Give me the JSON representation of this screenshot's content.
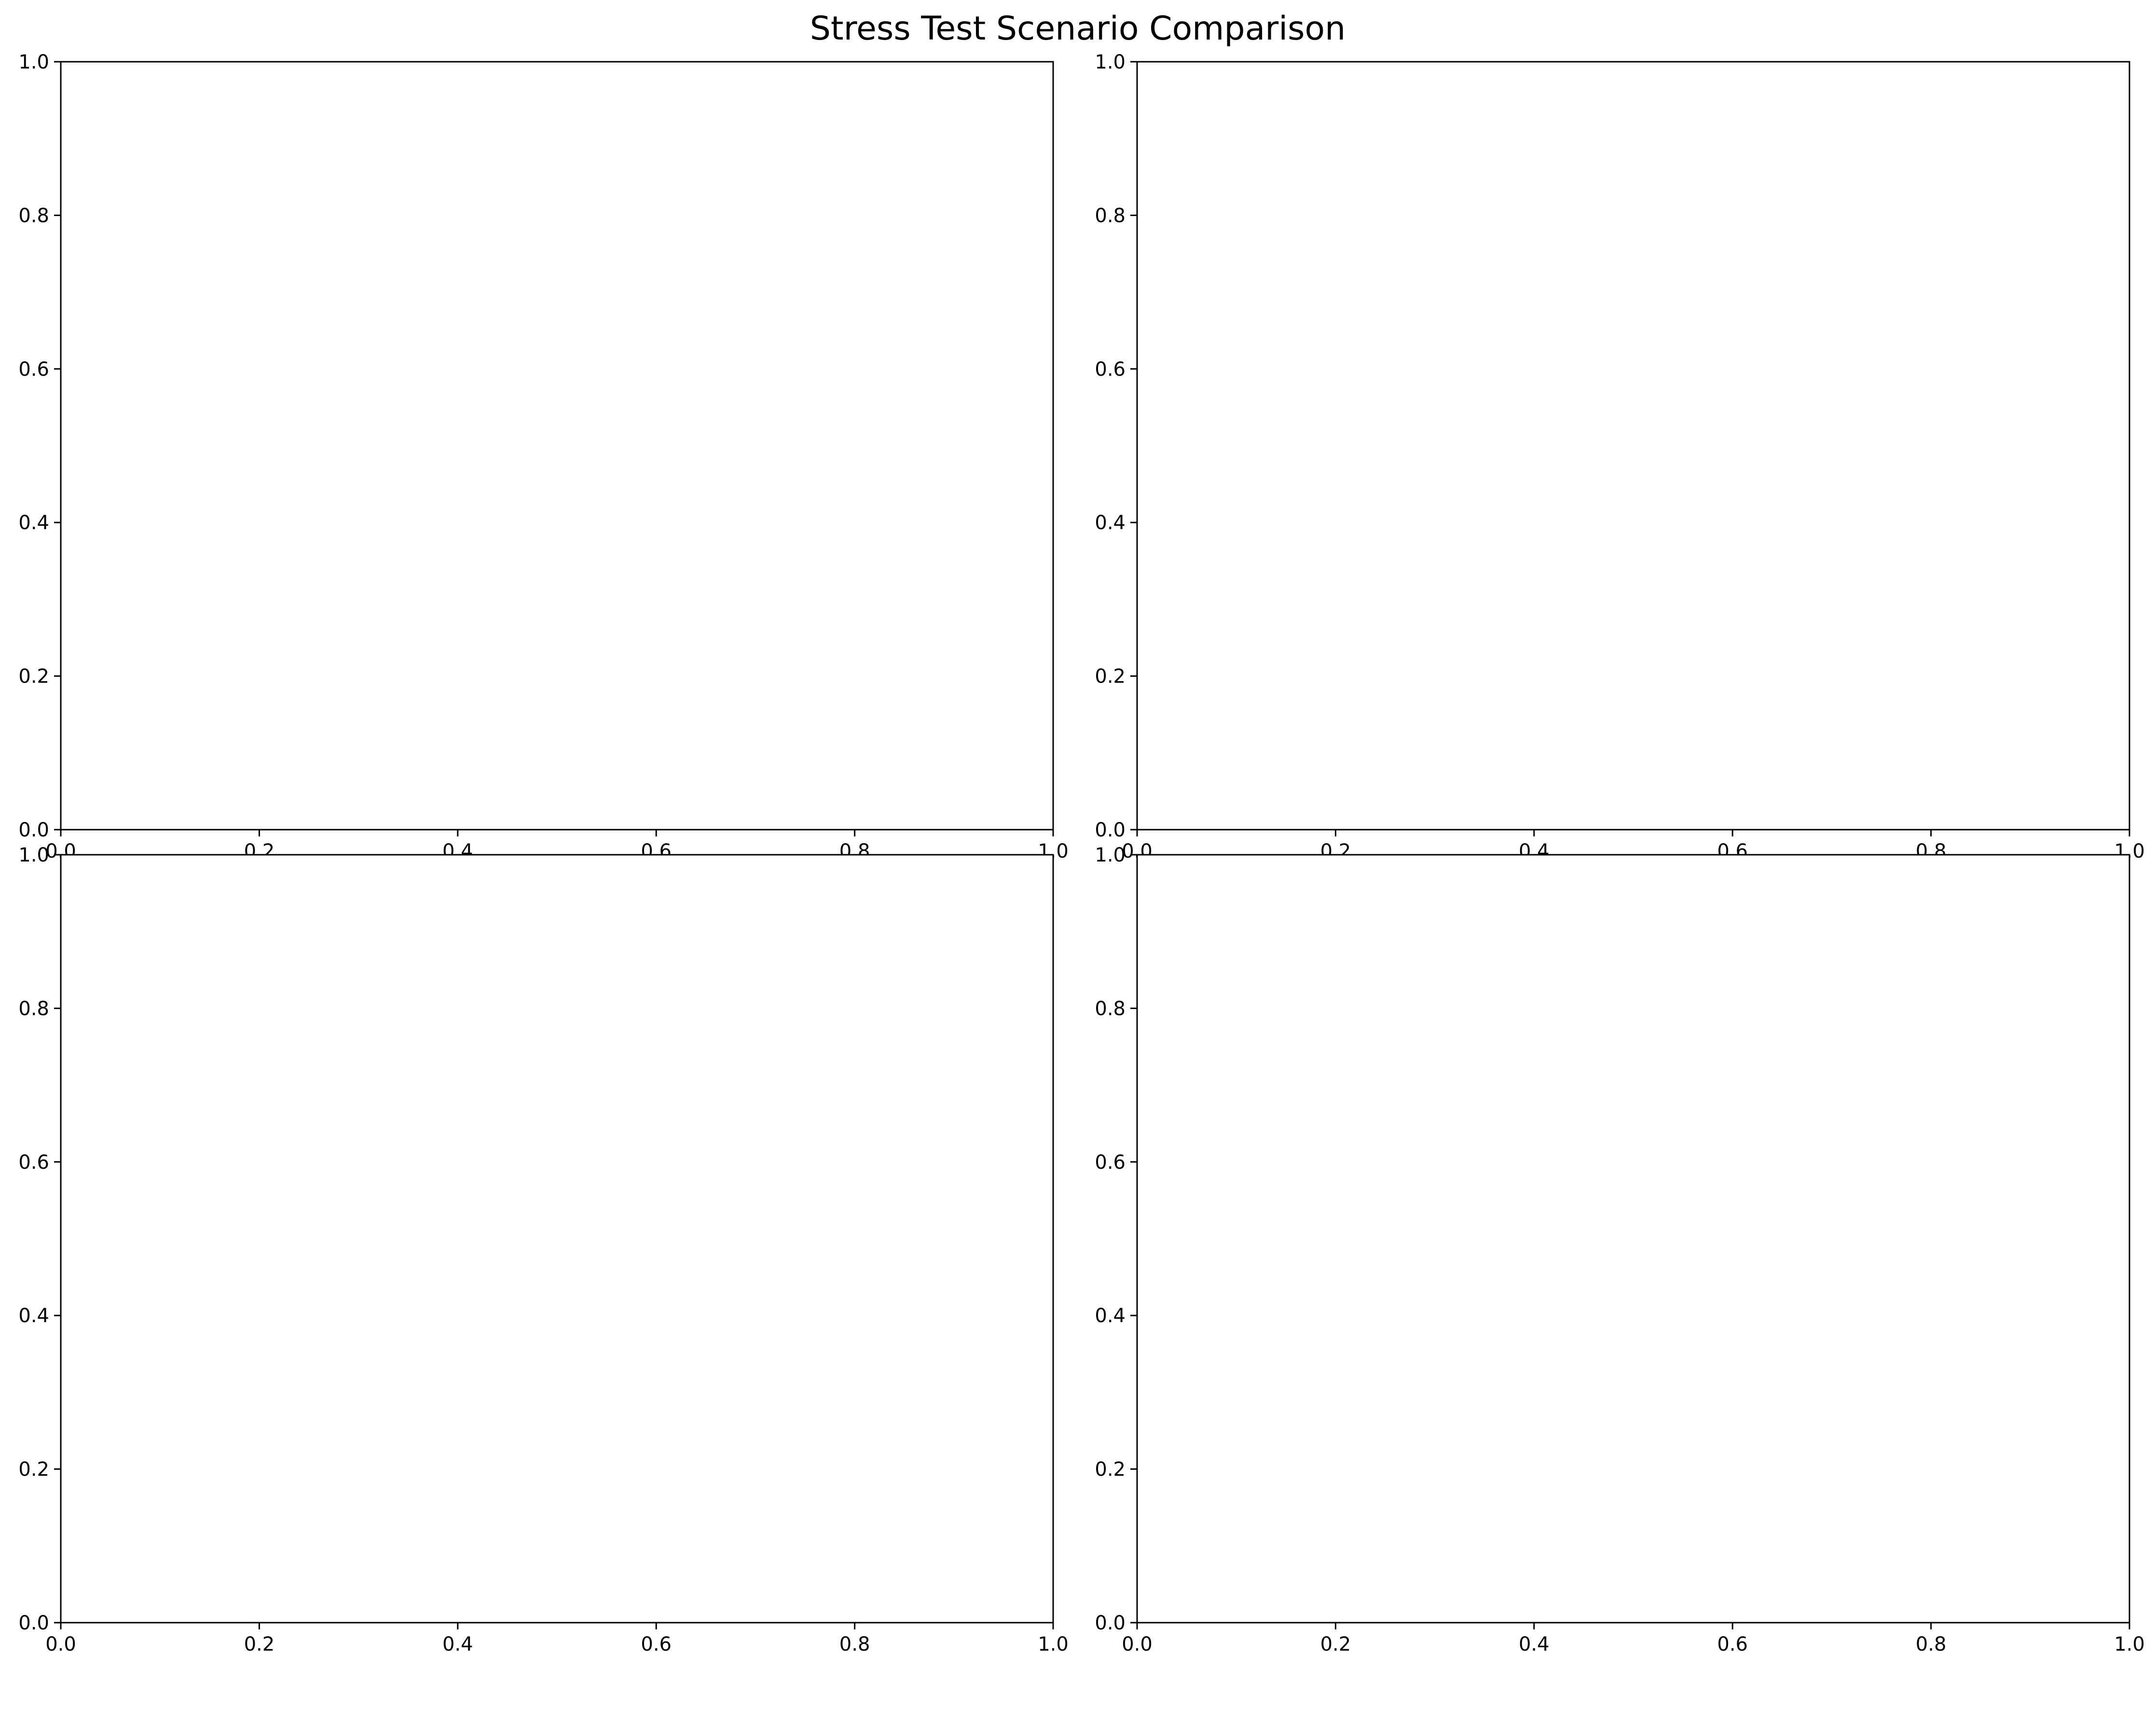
{
  "figure": {
    "title": "Stress Test Scenario Comparison",
    "background": "#ffffff",
    "axis_color": "#000000"
  },
  "chart_data": [
    {
      "type": "line",
      "title": "",
      "xlabel": "",
      "ylabel": "",
      "xlim": [
        0.0,
        1.0
      ],
      "ylim": [
        0.0,
        1.0
      ],
      "xticks": [
        "0.0",
        "0.2",
        "0.4",
        "0.6",
        "0.8",
        "1.0"
      ],
      "yticks": [
        "0.0",
        "0.2",
        "0.4",
        "0.6",
        "0.8",
        "1.0"
      ],
      "grid": false,
      "series": []
    },
    {
      "type": "line",
      "title": "",
      "xlabel": "",
      "ylabel": "",
      "xlim": [
        0.0,
        1.0
      ],
      "ylim": [
        0.0,
        1.0
      ],
      "xticks": [
        "0.0",
        "0.2",
        "0.4",
        "0.6",
        "0.8",
        "1.0"
      ],
      "yticks": [
        "0.0",
        "0.2",
        "0.4",
        "0.6",
        "0.8",
        "1.0"
      ],
      "grid": false,
      "series": []
    },
    {
      "type": "line",
      "title": "",
      "xlabel": "",
      "ylabel": "",
      "xlim": [
        0.0,
        1.0
      ],
      "ylim": [
        0.0,
        1.0
      ],
      "xticks": [
        "0.0",
        "0.2",
        "0.4",
        "0.6",
        "0.8",
        "1.0"
      ],
      "yticks": [
        "0.0",
        "0.2",
        "0.4",
        "0.6",
        "0.8",
        "1.0"
      ],
      "grid": false,
      "series": []
    },
    {
      "type": "line",
      "title": "",
      "xlabel": "",
      "ylabel": "",
      "xlim": [
        0.0,
        1.0
      ],
      "ylim": [
        0.0,
        1.0
      ],
      "xticks": [
        "0.0",
        "0.2",
        "0.4",
        "0.6",
        "0.8",
        "1.0"
      ],
      "yticks": [
        "0.0",
        "0.2",
        "0.4",
        "0.6",
        "0.8",
        "1.0"
      ],
      "grid": false,
      "series": []
    }
  ]
}
